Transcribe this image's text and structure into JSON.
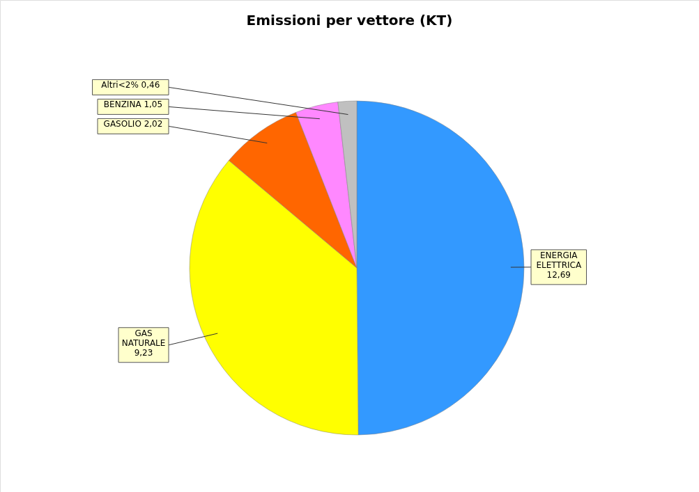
{
  "chart_data": {
    "type": "pie",
    "title": "Emissioni per vettore (KT)",
    "categories": [
      "ENERGIA ELETTRICA",
      "GAS NATURALE",
      "GASOLIO",
      "BENZINA",
      "Altri<2%"
    ],
    "values": [
      12.69,
      9.23,
      2.02,
      1.05,
      0.46
    ],
    "value_labels": [
      "12,69",
      "9,23",
      "2,02",
      "1,05",
      "0,46"
    ],
    "colors": [
      "#3399ff",
      "#ffff00",
      "#ff6600",
      "#ff88ff",
      "#c0c0c0"
    ]
  }
}
